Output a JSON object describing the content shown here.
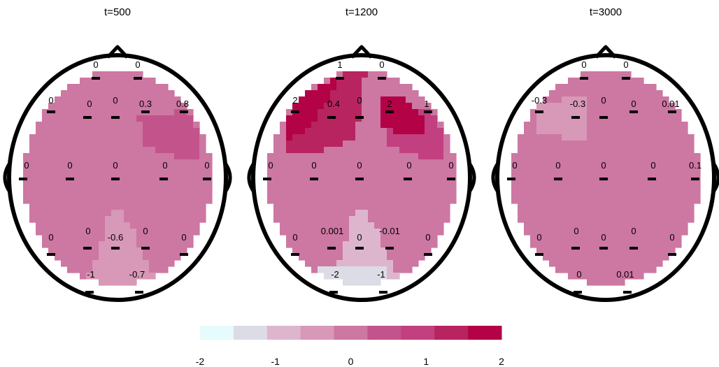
{
  "chart_data": {
    "type": "heatmap",
    "colorbar": {
      "ticks": [
        "-2",
        "-1",
        "0",
        "1",
        "2"
      ],
      "range": [
        -2,
        2
      ],
      "colors": [
        "#e6fbfb",
        "#dcdce6",
        "#ddb6ce",
        "#d898b7",
        "#cd77a3",
        "#c3548b",
        "#c2407f",
        "#b8245f",
        "#b30246"
      ]
    },
    "panels": [
      {
        "title": "t=500",
        "electrodes": [
          "0",
          "0",
          "0",
          "0",
          "0",
          "0.3",
          "0.8",
          "0",
          "0",
          "0",
          "0",
          "0",
          "0",
          "0",
          "-0.6",
          "0",
          "0",
          "-1",
          "-0.7"
        ],
        "field": [
          {
            "region": "base",
            "value": 0
          },
          {
            "region": "right-frontal",
            "value": 0.4
          },
          {
            "region": "occipital",
            "value": -0.7
          }
        ]
      },
      {
        "title": "t=1200",
        "electrodes": [
          "1",
          "0",
          "2",
          "0.4",
          "0",
          "2",
          "1",
          "0",
          "0",
          "0",
          "0",
          "0",
          "0",
          "0.001",
          "0",
          "-0.01",
          "0",
          "-2",
          "-1"
        ],
        "field": [
          {
            "region": "base",
            "value": 0
          },
          {
            "region": "left-frontal",
            "value": 1.3
          },
          {
            "region": "left-frontal-core",
            "value": 2
          },
          {
            "region": "right-frontal",
            "value": 1.2
          },
          {
            "region": "right-frontal-core",
            "value": 2
          },
          {
            "region": "occipital",
            "value": -0.8
          },
          {
            "region": "occipital-core",
            "value": -1.7
          }
        ]
      },
      {
        "title": "t=3000",
        "electrodes": [
          "0",
          "0",
          "-0.3",
          "-0.3",
          "0",
          "0",
          "0.01",
          "0",
          "0",
          "0",
          "0",
          "0.1",
          "0",
          "0",
          "0",
          "0",
          "0",
          "0",
          "0.01"
        ],
        "field": [
          {
            "region": "base",
            "value": 0
          },
          {
            "region": "left-frontal",
            "value": -0.3
          }
        ]
      }
    ]
  }
}
